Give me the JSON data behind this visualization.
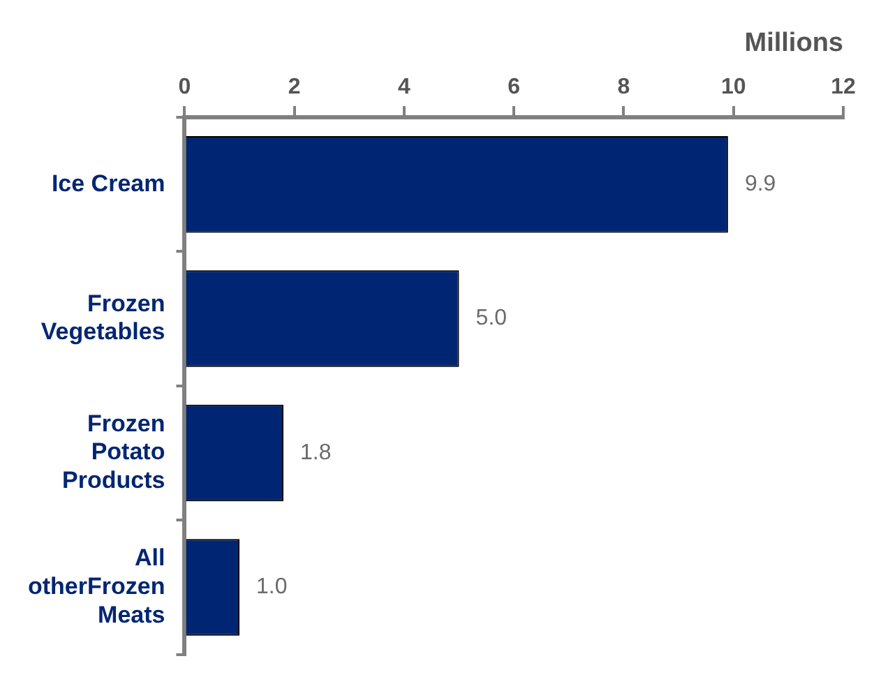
{
  "chart_data": {
    "type": "bar",
    "orientation": "horizontal",
    "xlabel": "Millions",
    "categories": [
      "Ice Cream",
      "Frozen Vegetables",
      "Frozen Potato Products",
      "All otherFrozen Meats"
    ],
    "values": [
      9.9,
      5.0,
      1.8,
      1.0
    ],
    "color": "#002673",
    "value_labels": [
      "9.9",
      "5.0",
      "1.8",
      "1.0"
    ],
    "xlim": [
      0,
      12
    ],
    "xticks": [
      0,
      2,
      4,
      6,
      8,
      10,
      12
    ],
    "grid": false,
    "legend": false
  }
}
